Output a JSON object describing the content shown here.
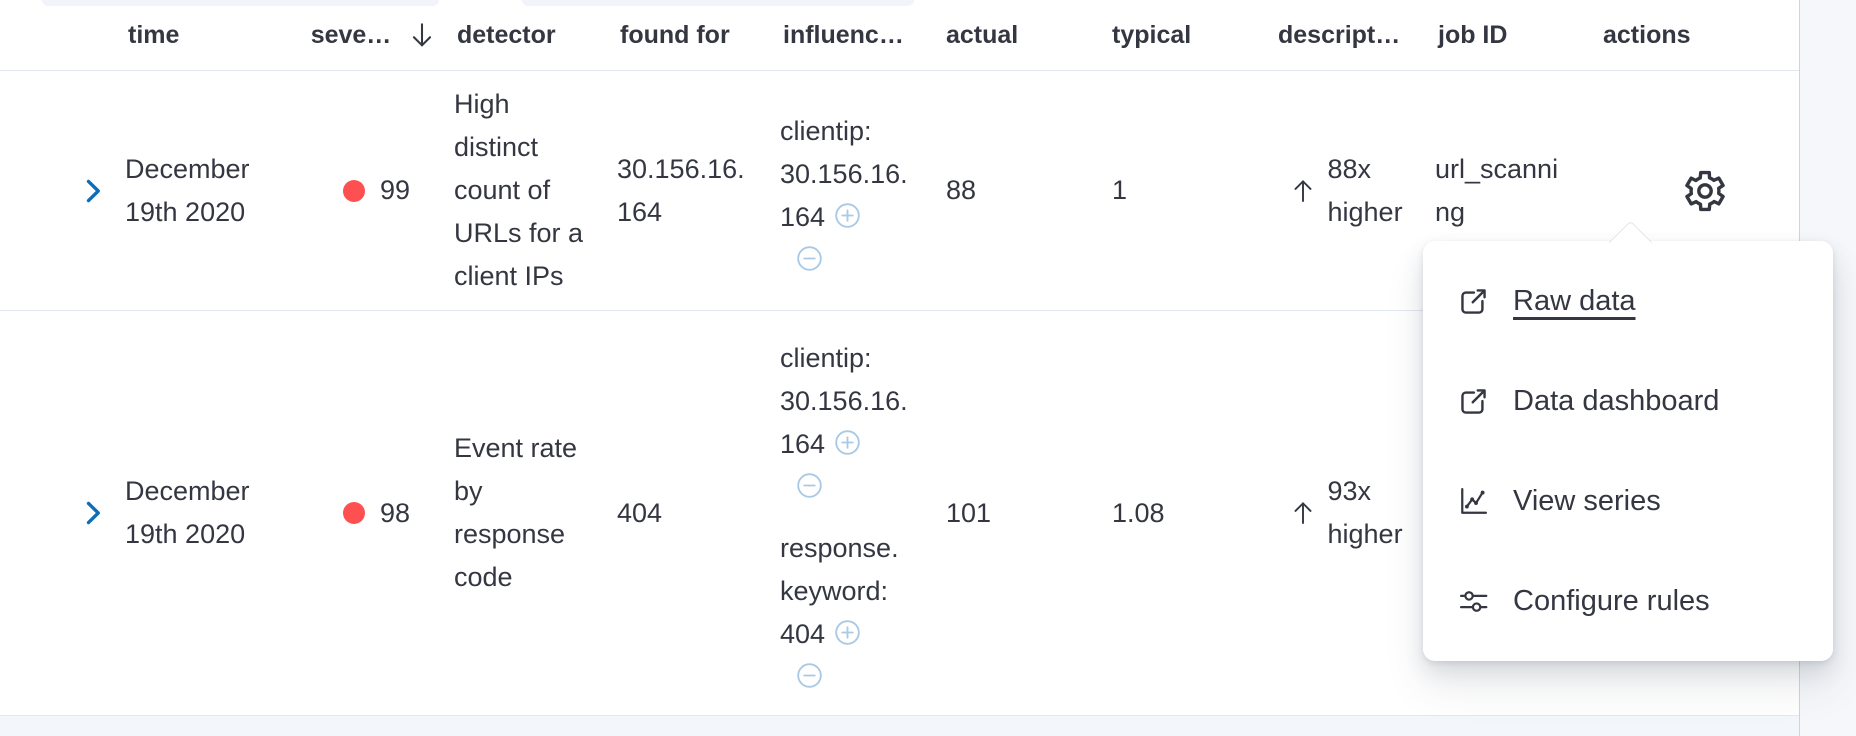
{
  "colors": {
    "text": "#343741",
    "link_blue": "#0d6db8",
    "severity_critical": "#fe5050",
    "filter_icon_blue": "#a9c9e4",
    "row_border": "#e3e8f0",
    "page_background": "#f5f7fa"
  },
  "table": {
    "columns": [
      {
        "id": "expand",
        "label": ""
      },
      {
        "id": "time",
        "label": "time"
      },
      {
        "id": "severity",
        "label": "seve…",
        "sort": "desc",
        "sort_icon": "arrow-down-icon"
      },
      {
        "id": "detector",
        "label": "detector"
      },
      {
        "id": "found_for",
        "label": "found for"
      },
      {
        "id": "influenced_by",
        "label": "influenc…"
      },
      {
        "id": "actual",
        "label": "actual"
      },
      {
        "id": "typical",
        "label": "typical"
      },
      {
        "id": "description",
        "label": "descript…"
      },
      {
        "id": "job_id",
        "label": "job ID"
      },
      {
        "id": "actions",
        "label": "actions"
      }
    ],
    "rows": [
      {
        "time": "December 19th 2020",
        "severity": "99",
        "severity_icon": "red-dot-icon",
        "detector": "High distinct count of URLs for a client IPs",
        "found_for": "30.156.16.164",
        "influencers": [
          {
            "label": "clientip: 30.156.16.164",
            "add_icon": "plus-circle-icon",
            "remove_icon": "minus-circle-icon"
          }
        ],
        "actual": "88",
        "typical": "1",
        "description": "88x higher",
        "description_icon": "arrow-up-icon",
        "job_id": "url_scanning",
        "actions_icon": "gear-icon"
      },
      {
        "time": "December 19th 2020",
        "severity": "98",
        "severity_icon": "red-dot-icon",
        "detector": "Event rate by response code",
        "found_for": "404",
        "influencers": [
          {
            "label": "clientip: 30.156.16.164",
            "add_icon": "plus-circle-icon",
            "remove_icon": "minus-circle-icon"
          },
          {
            "label": "response.keyword: 404",
            "add_icon": "plus-circle-icon",
            "remove_icon": "minus-circle-icon"
          }
        ],
        "actual": "101",
        "typical": "1.08",
        "description": "93x higher",
        "description_icon": "arrow-up-icon",
        "job_id": "",
        "actions_icon": ""
      }
    ]
  },
  "actions_menu": {
    "attached_to": "row 1 actions gear",
    "items": [
      {
        "label": "Raw data",
        "icon": "popout-icon",
        "hovered": true
      },
      {
        "label": "Data dashboard",
        "icon": "popout-icon",
        "hovered": false
      },
      {
        "label": "View series",
        "icon": "chart-line-icon",
        "hovered": false
      },
      {
        "label": "Configure rules",
        "icon": "sliders-icon",
        "hovered": false
      }
    ]
  }
}
